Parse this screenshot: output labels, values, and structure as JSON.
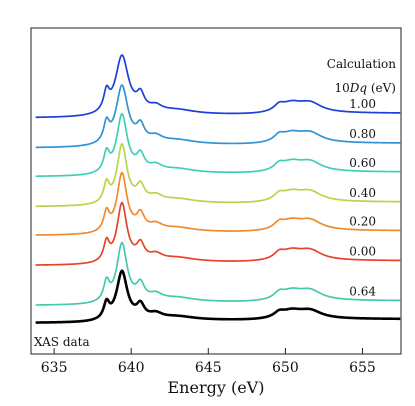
{
  "chart_data": {
    "type": "line",
    "xlabel": "Energy (eV)",
    "ylabel": "",
    "xlim": [
      633.5,
      657.5
    ],
    "xticks": [
      635,
      640,
      645,
      650,
      655
    ],
    "xtick_labels": [
      "635",
      "640",
      "645",
      "650",
      "655"
    ],
    "grid": false,
    "legend_title_line1": "Calculation",
    "legend_title_prefix": "10",
    "legend_title_italic": "Dq",
    "legend_title_suffix": " (eV)",
    "data_label": "XAS data",
    "series": [
      {
        "name": "1.00",
        "color": "#1f3fd6",
        "offset": 8.2,
        "sharpness": 1.35
      },
      {
        "name": "0.80",
        "color": "#2f93d4",
        "offset": 7.0,
        "sharpness": 1.2
      },
      {
        "name": "0.60",
        "color": "#3fcfb4",
        "offset": 5.85,
        "sharpness": 1.05
      },
      {
        "name": "0.40",
        "color": "#b4d64a",
        "offset": 4.65,
        "sharpness": 0.95
      },
      {
        "name": "0.20",
        "color": "#ef8b2c",
        "offset": 3.5,
        "sharpness": 0.95
      },
      {
        "name": "0.00",
        "color": "#e6432b",
        "offset": 2.3,
        "sharpness": 0.95
      },
      {
        "name": "0.64",
        "color": "#45c9ad",
        "offset": 0.7,
        "sharpness": 1.0
      },
      {
        "name": "XAS data",
        "color": "#000000",
        "offset": 0.0,
        "sharpness": 1.05
      }
    ]
  }
}
